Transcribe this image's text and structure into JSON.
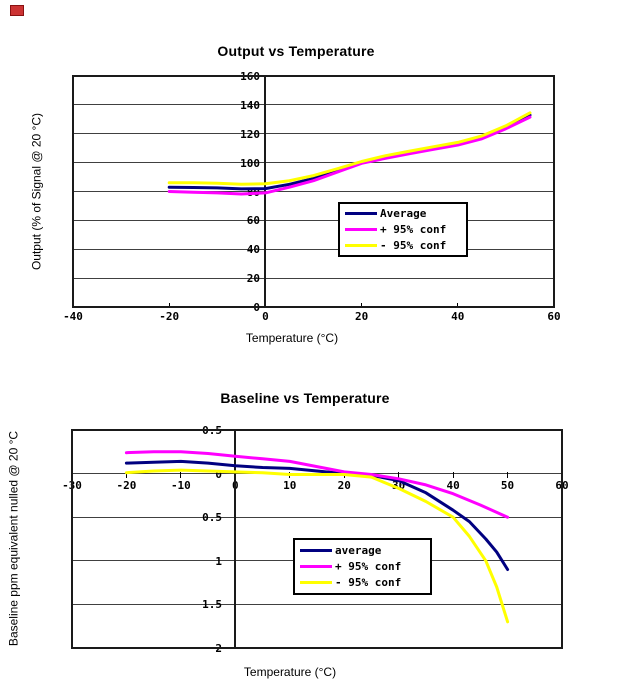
{
  "page": {
    "background": "#ffffff"
  },
  "icons": {
    "broken_image": "red-placeholder"
  },
  "colors": {
    "average": "#000080",
    "plus95": "#ff00ff",
    "minus95": "#ffff00",
    "grid": "#404040"
  },
  "chart_data": [
    {
      "type": "line",
      "title": "Output vs Temperature",
      "xlabel": "Temperature (°C)",
      "ylabel": "Output (% of Signal @ 20 °C)",
      "xlim": [
        -40,
        60
      ],
      "ylim": [
        0,
        160
      ],
      "grid": "horizontal",
      "legend_position": "center-right-inside",
      "x_ticks": [
        {
          "label": "-40",
          "value": -40
        },
        {
          "label": "-20",
          "value": -20
        },
        {
          "label": "0",
          "value": 0
        },
        {
          "label": "20",
          "value": 20
        },
        {
          "label": "40",
          "value": 40
        },
        {
          "label": "60",
          "value": 60
        }
      ],
      "y_ticks": [
        {
          "label": "160",
          "value": 160
        },
        {
          "label": "140",
          "value": 140
        },
        {
          "label": "120",
          "value": 120
        },
        {
          "label": "100",
          "value": 100
        },
        {
          "label": "80",
          "value": 80
        },
        {
          "label": "60",
          "value": 60
        },
        {
          "label": "40",
          "value": 40
        },
        {
          "label": "20",
          "value": 20
        },
        {
          "label": "0",
          "value": 0
        }
      ],
      "legend": {
        "entries": [
          {
            "label": "Average",
            "color": "#000080"
          },
          {
            "label": "+ 95% conf",
            "color": "#ff00ff"
          },
          {
            "label": "- 95% conf",
            "color": "#ffff00"
          }
        ]
      },
      "series": [
        {
          "name": "Average",
          "color": "#000080",
          "points": [
            [
              -20,
              83
            ],
            [
              -15,
              82.8
            ],
            [
              -10,
              82.5
            ],
            [
              -5,
              81.8
            ],
            [
              0,
              82
            ],
            [
              5,
              85
            ],
            [
              10,
              89
            ],
            [
              15,
              94.5
            ],
            [
              20,
              100
            ],
            [
              25,
              103.8
            ],
            [
              30,
              107
            ],
            [
              35,
              110
            ],
            [
              40,
              113
            ],
            [
              45,
              117.5
            ],
            [
              50,
              124.5
            ],
            [
              55,
              133
            ]
          ]
        },
        {
          "name": "+ 95% conf",
          "color": "#ff00ff",
          "points": [
            [
              -20,
              80
            ],
            [
              -15,
              79.5
            ],
            [
              -10,
              79
            ],
            [
              -5,
              78.3
            ],
            [
              0,
              79
            ],
            [
              5,
              83
            ],
            [
              10,
              87.5
            ],
            [
              15,
              93.5
            ],
            [
              20,
              99.5
            ],
            [
              25,
              103
            ],
            [
              30,
              106.2
            ],
            [
              35,
              109.2
            ],
            [
              40,
              112.2
            ],
            [
              45,
              116.5
            ],
            [
              50,
              123.5
            ],
            [
              55,
              131.5
            ]
          ]
        },
        {
          "name": "- 95% conf",
          "color": "#ffff00",
          "points": [
            [
              -20,
              86
            ],
            [
              -15,
              86
            ],
            [
              -10,
              85.7
            ],
            [
              -5,
              85
            ],
            [
              0,
              85.3
            ],
            [
              5,
              87.5
            ],
            [
              10,
              91
            ],
            [
              15,
              95.8
            ],
            [
              20,
              100.8
            ],
            [
              25,
              104.8
            ],
            [
              30,
              108
            ],
            [
              35,
              111
            ],
            [
              40,
              114
            ],
            [
              45,
              118.5
            ],
            [
              50,
              125.5
            ],
            [
              55,
              134.5
            ]
          ]
        }
      ]
    },
    {
      "type": "line",
      "title": "Baseline vs Temperature",
      "xlabel": "Temperature (°C)",
      "ylabel": "Baseline ppm equivalent nulled @ 20 °C",
      "xlim": [
        -30,
        60
      ],
      "ylim": [
        -2,
        0.5
      ],
      "grid": "horizontal",
      "legend_position": "center-right-inside",
      "x_ticks": [
        {
          "label": "-30",
          "value": -30
        },
        {
          "label": "-20",
          "value": -20
        },
        {
          "label": "-10",
          "value": -10
        },
        {
          "label": "0",
          "value": 0
        },
        {
          "label": "10",
          "value": 10
        },
        {
          "label": "20",
          "value": 20
        },
        {
          "label": "30",
          "value": 30
        },
        {
          "label": "40",
          "value": 40
        },
        {
          "label": "50",
          "value": 50
        },
        {
          "label": "60",
          "value": 60
        }
      ],
      "y_ticks": [
        {
          "label": "0.5",
          "value": 0.5
        },
        {
          "label": "0",
          "value": 0
        },
        {
          "label": "0.5",
          "value": -0.5
        },
        {
          "label": "1",
          "value": -1
        },
        {
          "label": "1.5",
          "value": -1.5
        },
        {
          "label": "2",
          "value": -2
        }
      ],
      "legend": {
        "entries": [
          {
            "label": "average",
            "color": "#000080"
          },
          {
            "label": "+ 95% conf",
            "color": "#ff00ff"
          },
          {
            "label": "- 95% conf",
            "color": "#ffff00"
          }
        ]
      },
      "series": [
        {
          "name": "average",
          "color": "#000080",
          "points": [
            [
              -20,
              0.12
            ],
            [
              -15,
              0.13
            ],
            [
              -10,
              0.14
            ],
            [
              -5,
              0.12
            ],
            [
              0,
              0.09
            ],
            [
              5,
              0.07
            ],
            [
              10,
              0.06
            ],
            [
              15,
              0.03
            ],
            [
              20,
              0
            ],
            [
              25,
              -0.02
            ],
            [
              30,
              -0.08
            ],
            [
              35,
              -0.22
            ],
            [
              40,
              -0.42
            ],
            [
              43,
              -0.55
            ],
            [
              46,
              -0.75
            ],
            [
              48,
              -0.9
            ],
            [
              50,
              -1.1
            ]
          ]
        },
        {
          "name": "+ 95% conf",
          "color": "#ff00ff",
          "points": [
            [
              -20,
              0.24
            ],
            [
              -15,
              0.25
            ],
            [
              -10,
              0.25
            ],
            [
              -5,
              0.23
            ],
            [
              0,
              0.2
            ],
            [
              5,
              0.17
            ],
            [
              10,
              0.14
            ],
            [
              15,
              0.08
            ],
            [
              20,
              0.02
            ],
            [
              25,
              -0.01
            ],
            [
              30,
              -0.06
            ],
            [
              35,
              -0.13
            ],
            [
              40,
              -0.23
            ],
            [
              45,
              -0.36
            ],
            [
              50,
              -0.5
            ]
          ]
        },
        {
          "name": "- 95% conf",
          "color": "#ffff00",
          "points": [
            [
              -20,
              0.01
            ],
            [
              -15,
              0.03
            ],
            [
              -10,
              0.04
            ],
            [
              -5,
              0.03
            ],
            [
              0,
              0.02
            ],
            [
              5,
              0.01
            ],
            [
              10,
              -0.01
            ],
            [
              15,
              -0.01
            ],
            [
              20,
              -0.01
            ],
            [
              25,
              -0.04
            ],
            [
              30,
              -0.17
            ],
            [
              35,
              -0.32
            ],
            [
              40,
              -0.5
            ],
            [
              43,
              -0.72
            ],
            [
              46,
              -1.0
            ],
            [
              48,
              -1.3
            ],
            [
              50,
              -1.7
            ]
          ]
        }
      ]
    }
  ]
}
